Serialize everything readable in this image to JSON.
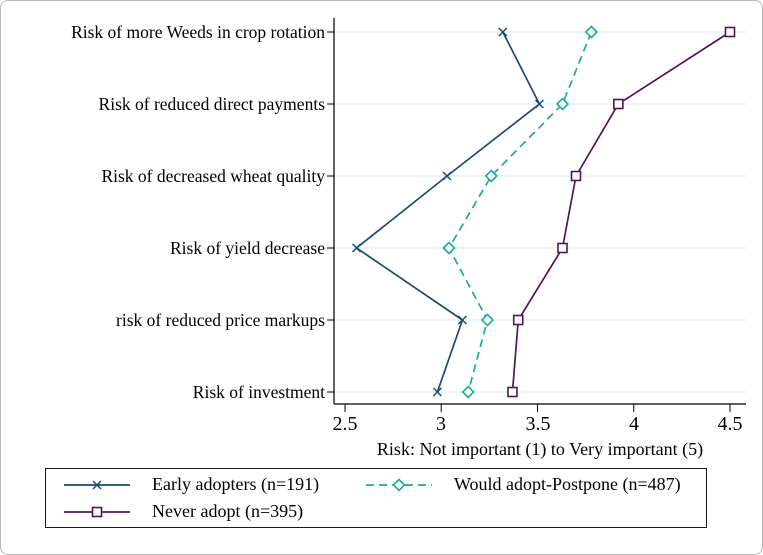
{
  "chart_data": {
    "type": "line",
    "orientation": "horizontal-categories",
    "title": "",
    "xlabel": "Risk: Not important (1) to Very important (5)",
    "xlim": [
      2.5,
      4.5
    ],
    "x_ticks": [
      2.5,
      3,
      3.5,
      4,
      4.5
    ],
    "x_tick_labels": [
      "2.5",
      "3",
      "3.5",
      "4",
      "4.5"
    ],
    "categories": [
      "Risk of more Weeds in crop rotation",
      "Risk of reduced direct payments",
      "Risk of decreased wheat quality",
      "Risk of yield decrease",
      "risk of reduced price markups",
      "Risk of investment"
    ],
    "series": [
      {
        "name": "Early adopters (n=191)",
        "color": "#1a4a78",
        "line_style": "solid",
        "marker": "x",
        "values": [
          3.32,
          3.51,
          3.03,
          2.56,
          3.11,
          2.98
        ]
      },
      {
        "name": "Would adopt-Postpone (n=487)",
        "color": "#1aab9b",
        "line_style": "dashed",
        "marker": "diamond",
        "values": [
          3.78,
          3.63,
          3.26,
          3.04,
          3.24,
          3.14
        ]
      },
      {
        "name": "Never adopt (n=395)",
        "color": "#4f165a",
        "line_style": "solid",
        "marker": "square",
        "values": [
          4.5,
          3.92,
          3.7,
          3.63,
          3.4,
          3.37
        ]
      }
    ],
    "grid": "horizontal",
    "gridline_color": "#e2eef0",
    "axis_color": "#000000",
    "legend_position": "bottom"
  }
}
